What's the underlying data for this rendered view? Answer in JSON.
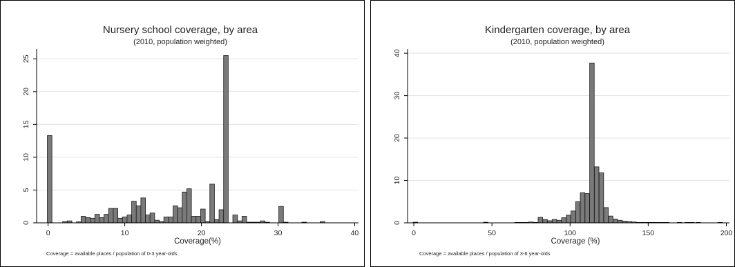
{
  "chart_data": [
    {
      "type": "bar",
      "title": "Nursery school coverage, by area",
      "subtitle": "(2010, population weighted)",
      "xlabel": "Coverage(%)",
      "ylabel": "",
      "note": "Coverage = available places / population of 0-3 year-olds",
      "xlim": [
        -1.5,
        40.5
      ],
      "ylim": [
        0,
        26.5
      ],
      "xticks": [
        0,
        10,
        20,
        30,
        40
      ],
      "yticks": [
        0,
        5,
        10,
        15,
        20,
        25
      ],
      "grid": true,
      "bin_width": 0.6,
      "x": [
        0.2,
        2.2,
        2.8,
        4.0,
        4.6,
        5.2,
        5.8,
        6.4,
        7.0,
        7.6,
        8.2,
        8.8,
        9.4,
        10.0,
        10.6,
        11.2,
        11.8,
        12.4,
        13.0,
        13.6,
        14.2,
        14.8,
        15.4,
        16.0,
        16.6,
        17.2,
        17.8,
        18.4,
        19.0,
        19.6,
        20.2,
        20.8,
        21.4,
        22.0,
        22.6,
        23.2,
        24.4,
        25.0,
        25.6,
        26.2,
        26.8,
        27.4,
        28.0,
        28.6,
        30.4,
        31.0,
        33.4,
        35.8
      ],
      "values": [
        13.3,
        0.2,
        0.3,
        0.15,
        1.0,
        0.8,
        0.7,
        1.3,
        0.8,
        1.3,
        2.2,
        2.2,
        0.7,
        0.9,
        1.2,
        3.3,
        2.6,
        3.8,
        1.2,
        1.5,
        0.4,
        0.2,
        0.9,
        0.9,
        2.6,
        2.3,
        4.7,
        5.2,
        1.0,
        1.0,
        2.1,
        0.2,
        5.9,
        0.5,
        2.0,
        25.5,
        1.2,
        0.3,
        1.0,
        0.1,
        0.1,
        0.1,
        0.3,
        0.1,
        2.5,
        0.1,
        0.1,
        0.2
      ]
    },
    {
      "type": "bar",
      "title": "Kindergarten coverage, by area",
      "subtitle": "(2010, population weighted)",
      "xlabel": "Coverage (%)",
      "ylabel": "",
      "note": "Coverage = available places / population of 3-6 year-olds",
      "xlim": [
        -4,
        202
      ],
      "ylim": [
        0,
        41
      ],
      "xticks": [
        0,
        50,
        100,
        150,
        200
      ],
      "yticks": [
        0,
        10,
        20,
        30,
        40
      ],
      "grid": true,
      "bin_width": 2.9,
      "x": [
        1,
        46,
        66,
        69,
        72,
        75,
        78,
        81,
        84,
        87,
        90,
        93,
        96,
        99,
        102,
        105,
        108,
        111,
        114,
        117,
        120,
        123,
        126,
        129,
        132,
        135,
        138,
        141,
        144,
        147,
        150,
        153,
        156,
        159,
        162,
        170,
        175,
        178,
        182,
        196
      ],
      "values": [
        0.15,
        0.15,
        0.1,
        0.1,
        0.1,
        0.2,
        0.1,
        1.3,
        0.8,
        0.5,
        0.8,
        0.6,
        1.2,
        1.8,
        2.8,
        5.0,
        7.1,
        6.9,
        37.7,
        13.2,
        11.8,
        3.6,
        1.6,
        0.9,
        0.6,
        0.4,
        0.3,
        0.2,
        0.1,
        0.1,
        0.1,
        0.1,
        0.1,
        0.1,
        0.1,
        0.1,
        0.1,
        0.1,
        0.1,
        0.1
      ]
    }
  ]
}
